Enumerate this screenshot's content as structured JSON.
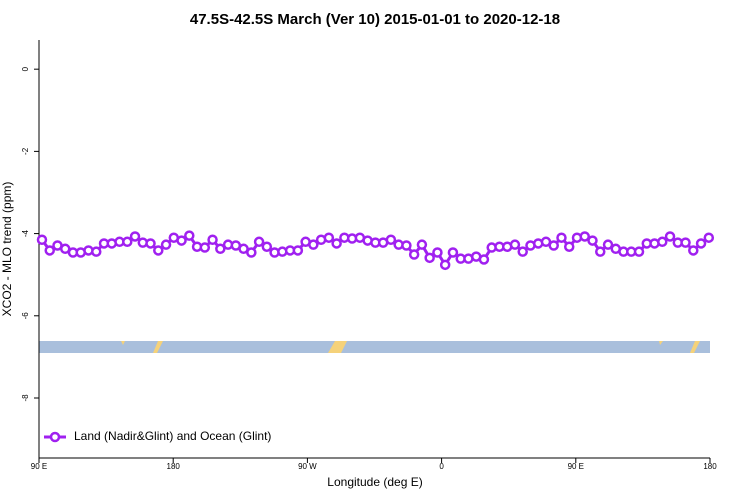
{
  "chart_data": {
    "type": "line",
    "title": "47.5S-42.5S March (Ver 10)   2015-01-01 to 2020-12-18",
    "xlabel": "Longitude (deg E)",
    "ylabel": "XCO2 - MLO trend (ppm)",
    "xlim": [
      90,
      540
    ],
    "ylim": [
      -9.46,
      0.71
    ],
    "xticks": [
      {
        "value": 90,
        "label": "90 E"
      },
      {
        "value": 180,
        "label": "180"
      },
      {
        "value": 270,
        "label": "90 W"
      },
      {
        "value": 360,
        "label": "0"
      },
      {
        "value": 450,
        "label": "90 E"
      },
      {
        "value": 540,
        "label": "180"
      }
    ],
    "yticks": [
      0,
      -2,
      -4,
      -6,
      -8
    ],
    "legend": "lower left",
    "series": [
      {
        "name": "Land (Nadir&Glint) and Ocean (Glint)",
        "color": "#a020f0",
        "x": [
          92,
          97.2,
          102.4,
          107.6,
          112.8,
          118,
          123.2,
          128.4,
          133.6,
          138.8,
          144,
          149.2,
          154.4,
          159.6,
          164.8,
          170,
          175.2,
          180.4,
          185.6,
          190.8,
          196,
          201.2,
          206.4,
          211.6,
          216.8,
          222,
          227.2,
          232.4,
          237.6,
          242.8,
          248,
          253.2,
          258.4,
          263.6,
          268.8,
          274,
          279.2,
          284.4,
          289.6,
          294.8,
          300,
          305.2,
          310.4,
          315.6,
          320.8,
          326,
          331.2,
          336.4,
          341.6,
          346.8,
          352,
          357.2,
          362.4,
          367.6,
          372.8,
          378,
          383.2,
          388.4,
          393.6,
          398.8,
          404,
          409.2,
          414.4,
          419.6,
          424.8,
          430,
          435.2,
          440.4,
          445.6,
          450.8,
          456,
          461.2,
          466.4,
          471.6,
          476.8,
          482,
          487.2,
          492.4,
          497.6,
          502.8,
          508,
          513.2,
          518.4,
          523.6,
          528.8,
          534,
          539.2
        ],
        "values": [
          -4.15,
          -4.41,
          -4.29,
          -4.37,
          -4.46,
          -4.46,
          -4.41,
          -4.44,
          -4.24,
          -4.24,
          -4.2,
          -4.2,
          -4.07,
          -4.22,
          -4.24,
          -4.41,
          -4.27,
          -4.1,
          -4.17,
          -4.05,
          -4.32,
          -4.34,
          -4.15,
          -4.37,
          -4.27,
          -4.29,
          -4.37,
          -4.46,
          -4.2,
          -4.32,
          -4.46,
          -4.44,
          -4.41,
          -4.41,
          -4.2,
          -4.27,
          -4.15,
          -4.1,
          -4.24,
          -4.1,
          -4.12,
          -4.1,
          -4.17,
          -4.22,
          -4.22,
          -4.15,
          -4.27,
          -4.29,
          -4.51,
          -4.27,
          -4.59,
          -4.46,
          -4.76,
          -4.46,
          -4.61,
          -4.61,
          -4.56,
          -4.63,
          -4.34,
          -4.32,
          -4.32,
          -4.27,
          -4.44,
          -4.29,
          -4.24,
          -4.2,
          -4.29,
          -4.1,
          -4.32,
          -4.1,
          -4.07,
          -4.17,
          -4.44,
          -4.27,
          -4.37,
          -4.44,
          -4.44,
          -4.44,
          -4.24,
          -4.24,
          -4.2,
          -4.07,
          -4.22,
          -4.22,
          -4.41,
          -4.24,
          -4.1
        ]
      }
    ]
  }
}
